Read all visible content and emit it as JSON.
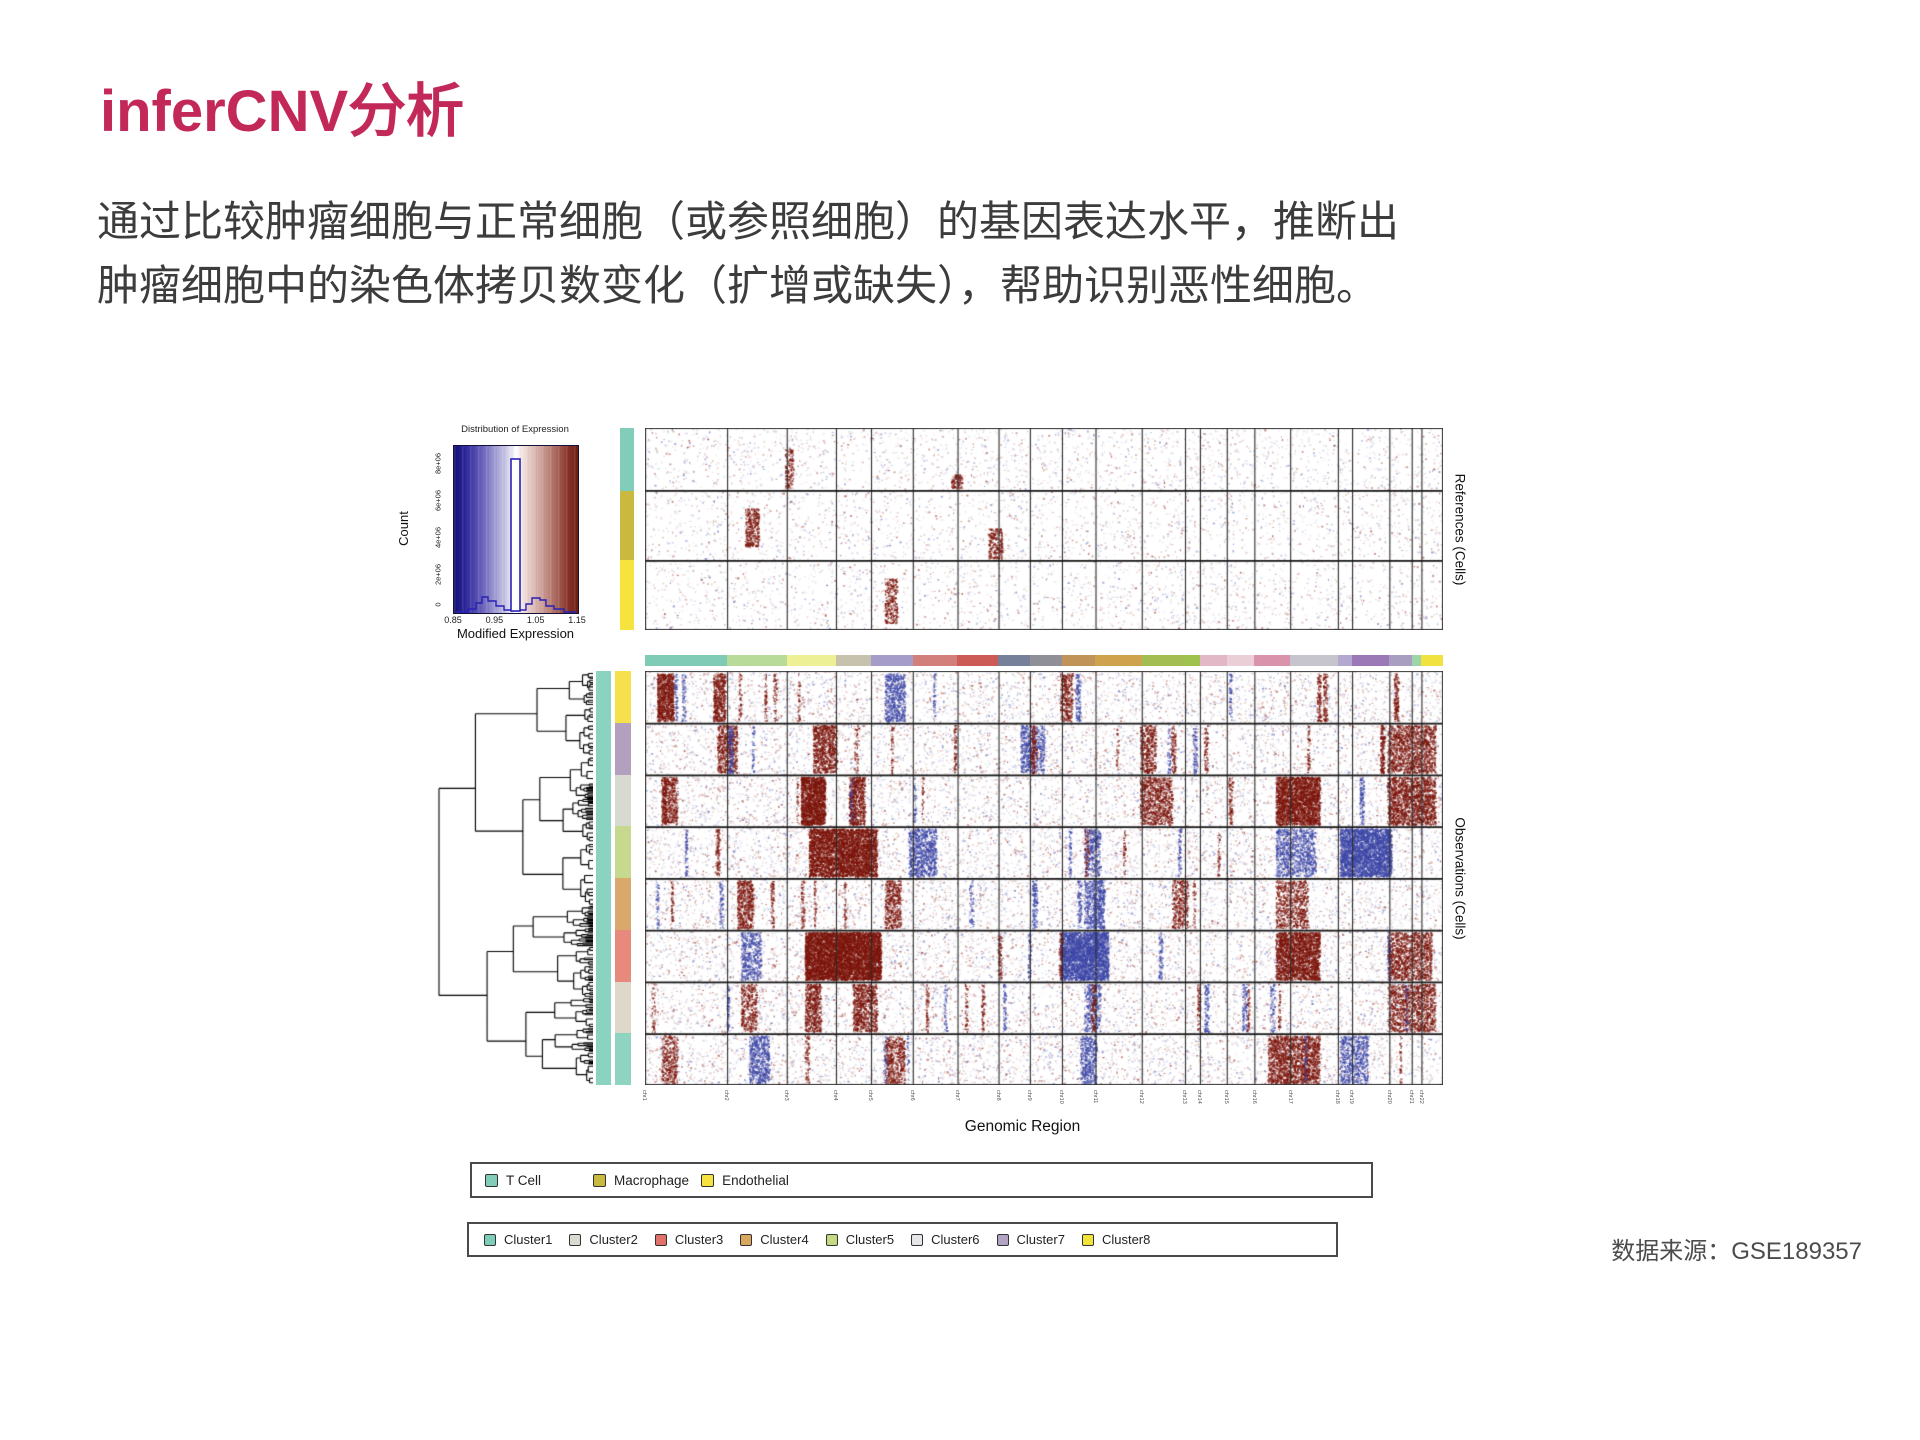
{
  "slide": {
    "title": "inferCNV分析",
    "title_color": "#C22858",
    "body_line1": "通过比较肿瘤细胞与正常细胞（或参照细胞）的基因表达水平，推断出",
    "body_line2": "肿瘤细胞中的染色体拷贝数变化（扩增或缺失），帮助识别恶性细胞。",
    "source": "数据来源：GSE189357"
  },
  "figure": {
    "histogram": {
      "title": "Distribution of Expression",
      "xlabel": "Modified Expression",
      "ylabel": "Count",
      "x_ticks": [
        "0.85",
        "0.95",
        "1.05",
        "1.15"
      ],
      "y_ticks": [
        "0",
        "2e+06",
        "4e+06",
        "6e+06",
        "8e+06"
      ]
    },
    "references": {
      "label": "References (Cells)",
      "group_colors": [
        "#82CDB9",
        "#C9B93F",
        "#F6E33E"
      ]
    },
    "observations": {
      "label": "Observations (Cells)",
      "xlabel": "Genomic Region",
      "celltype_color": "#8BD2C0",
      "cluster_band_colors": [
        "#F6E04C",
        "#B2A0BE",
        "#D8D9D1",
        "#C7D98F",
        "#D9A96B",
        "#E8897E",
        "#DED8CB",
        "#8FD4C0"
      ]
    },
    "colors": {
      "gain_red": "#8B1A10",
      "loss_blue": "#4A55B0"
    },
    "chromosomes": [
      "chr1",
      "chr2",
      "chr3",
      "chr4",
      "chr5",
      "chr6",
      "chr7",
      "chr8",
      "chr9",
      "chr10",
      "chr11",
      "chr12",
      "chr13",
      "chr14",
      "chr15",
      "chr16",
      "chr17",
      "chr18",
      "chr19",
      "chr20",
      "chr21",
      "chr22"
    ],
    "chromosome_colors": [
      "#7FCBB6",
      "#B9DB99",
      "#EEF096",
      "#C6C2AD",
      "#A59CC9",
      "#D27F7C",
      "#CC5A55",
      "#768099",
      "#8F8F97",
      "#C09358",
      "#CFA24D",
      "#A3BD52",
      "#9FC24E",
      "#E3B8C6",
      "#EACFD6",
      "#D993AB",
      "#C6C5CD",
      "#B3A8D0",
      "#9B79B7",
      "#A89FC0",
      "#9ED4A9",
      "#F1E23F"
    ],
    "legend_celltypes": [
      {
        "label": "T Cell",
        "color": "#82CDB9"
      },
      {
        "label": "Macrophage",
        "color": "#C9B93F"
      },
      {
        "label": "Endothelial",
        "color": "#F6E33E"
      }
    ],
    "legend_clusters": [
      {
        "label": "Cluster1",
        "color": "#7ECDB9"
      },
      {
        "label": "Cluster2",
        "color": "#D9DAD2"
      },
      {
        "label": "Cluster3",
        "color": "#E0716B"
      },
      {
        "label": "Cluster4",
        "color": "#D8A85F"
      },
      {
        "label": "Cluster5",
        "color": "#C5D983"
      },
      {
        "label": "Cluster6",
        "color": "#E6E5EA"
      },
      {
        "label": "Cluster7",
        "color": "#B4A2C2"
      },
      {
        "label": "Cluster8",
        "color": "#F2E33C"
      }
    ]
  }
}
